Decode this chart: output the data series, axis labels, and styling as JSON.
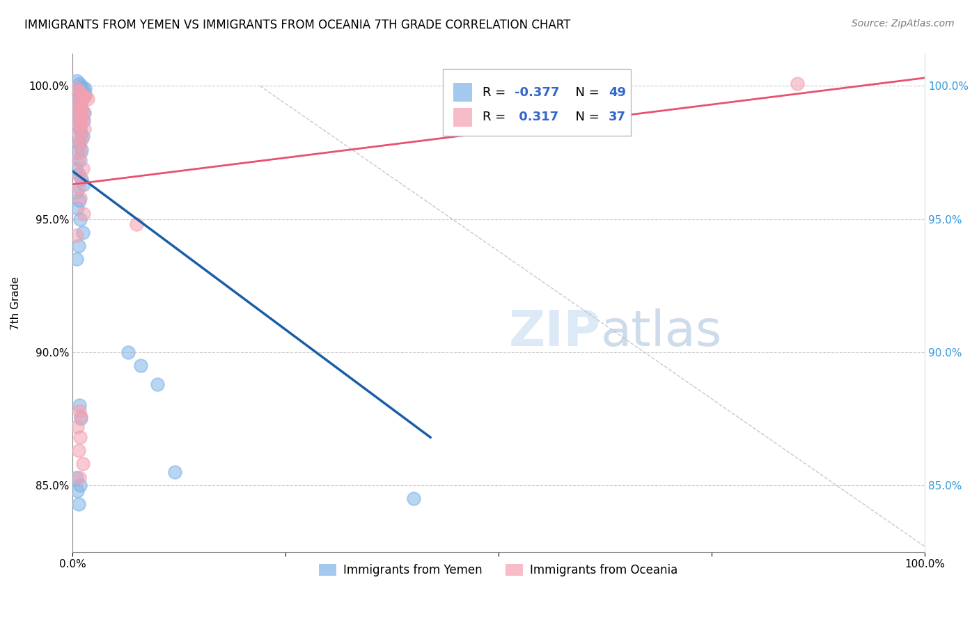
{
  "title": "IMMIGRANTS FROM YEMEN VS IMMIGRANTS FROM OCEANIA 7TH GRADE CORRELATION CHART",
  "source": "Source: ZipAtlas.com",
  "ylabel": "7th Grade",
  "blue_color": "#7EB3E8",
  "pink_color": "#F4A0B0",
  "blue_line_color": "#1A5EA8",
  "pink_line_color": "#E85070",
  "yticks": [
    0.85,
    0.9,
    0.95,
    1.0
  ],
  "ytick_labels": [
    "85.0%",
    "90.0%",
    "95.0%",
    "100.0%"
  ],
  "xlim": [
    0.0,
    1.0
  ],
  "ylim": [
    0.825,
    1.012
  ],
  "blue_line_x": [
    0.0,
    0.42
  ],
  "blue_line_y": [
    0.968,
    0.868
  ],
  "pink_line_x": [
    0.0,
    1.0
  ],
  "pink_line_y": [
    0.963,
    1.003
  ],
  "dash_line_x": [
    0.22,
    1.0
  ],
  "dash_line_y": [
    1.0,
    0.827
  ],
  "blue_x": [
    0.005,
    0.008,
    0.01,
    0.012,
    0.015,
    0.008,
    0.01,
    0.015,
    0.012,
    0.006,
    0.003,
    0.007,
    0.009,
    0.011,
    0.014,
    0.006,
    0.008,
    0.013,
    0.005,
    0.009,
    0.01,
    0.012,
    0.007,
    0.008,
    0.011,
    0.006,
    0.009,
    0.004,
    0.007,
    0.011,
    0.013,
    0.005,
    0.008,
    0.006,
    0.009,
    0.012,
    0.007,
    0.005,
    0.008,
    0.01,
    0.065,
    0.08,
    0.1,
    0.12,
    0.005,
    0.009,
    0.006,
    0.4,
    0.007
  ],
  "blue_y": [
    1.002,
    1.001,
    1.0,
    0.999,
    0.999,
    0.998,
    0.997,
    0.997,
    0.996,
    0.995,
    0.994,
    0.993,
    0.992,
    0.991,
    0.99,
    0.989,
    0.988,
    0.987,
    0.985,
    0.984,
    0.982,
    0.981,
    0.979,
    0.978,
    0.976,
    0.975,
    0.972,
    0.969,
    0.967,
    0.965,
    0.963,
    0.96,
    0.957,
    0.954,
    0.95,
    0.945,
    0.94,
    0.935,
    0.88,
    0.875,
    0.9,
    0.895,
    0.888,
    0.855,
    0.853,
    0.85,
    0.848,
    0.845,
    0.843
  ],
  "pink_x": [
    0.005,
    0.008,
    0.01,
    0.012,
    0.015,
    0.018,
    0.006,
    0.009,
    0.011,
    0.007,
    0.013,
    0.008,
    0.01,
    0.012,
    0.006,
    0.009,
    0.014,
    0.007,
    0.011,
    0.008,
    0.01,
    0.006,
    0.012,
    0.008,
    0.007,
    0.009,
    0.013,
    0.075,
    0.005,
    0.008,
    0.01,
    0.006,
    0.009,
    0.85,
    0.007,
    0.012,
    0.008
  ],
  "pink_y": [
    0.999,
    0.998,
    0.997,
    0.996,
    0.996,
    0.995,
    0.994,
    0.993,
    0.992,
    0.991,
    0.99,
    0.989,
    0.988,
    0.987,
    0.986,
    0.985,
    0.984,
    0.982,
    0.98,
    0.978,
    0.975,
    0.972,
    0.969,
    0.966,
    0.962,
    0.958,
    0.952,
    0.948,
    0.944,
    0.878,
    0.876,
    0.872,
    0.868,
    1.001,
    0.863,
    0.858,
    0.853
  ]
}
